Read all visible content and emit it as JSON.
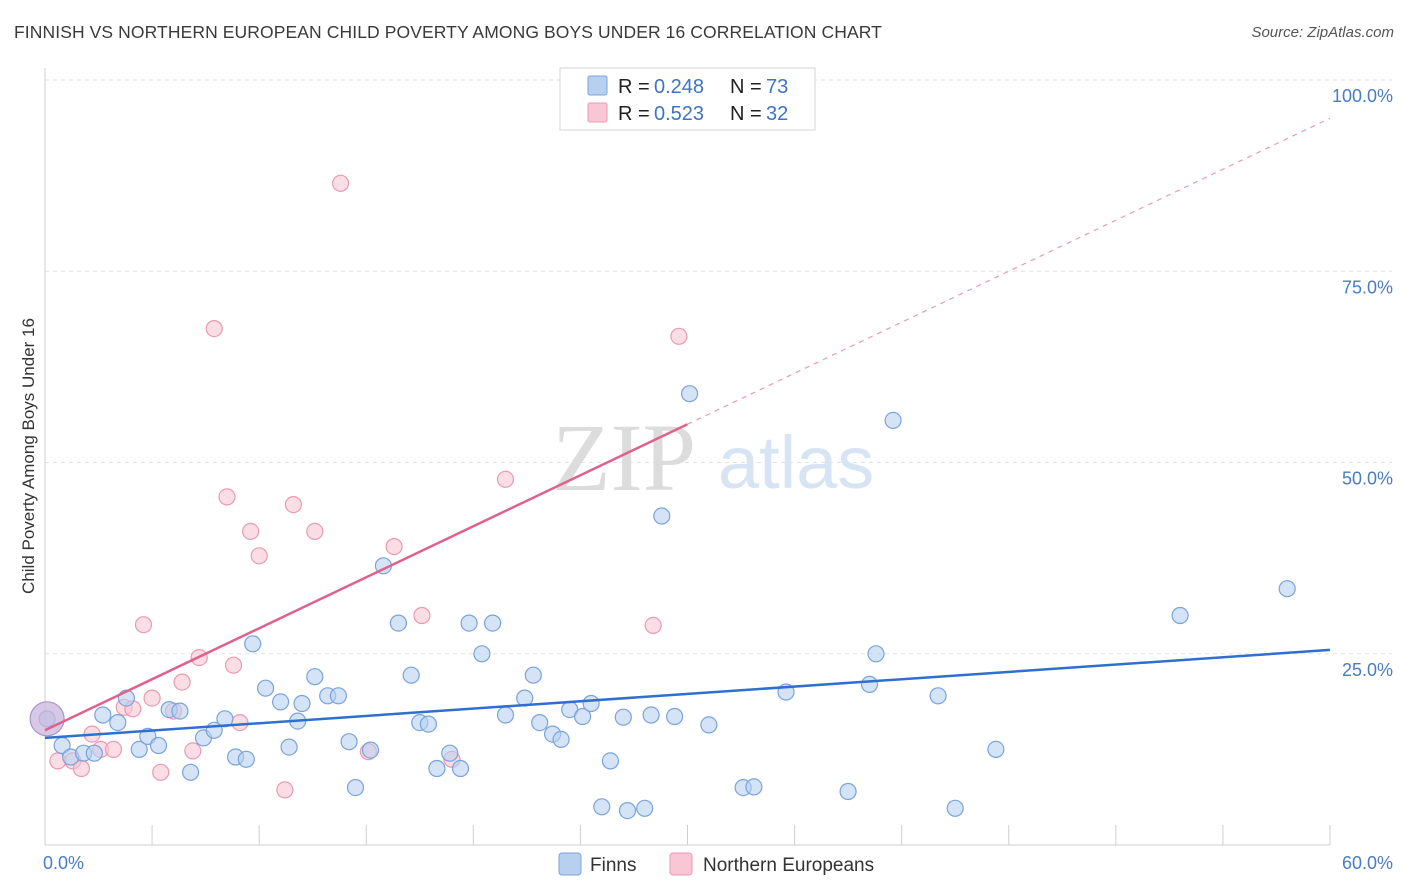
{
  "header": {
    "title": "FINNISH VS NORTHERN EUROPEAN CHILD POVERTY AMONG BOYS UNDER 16 CORRELATION CHART",
    "source": "Source: ZipAtlas.com"
  },
  "watermark": {
    "part1": "ZIP",
    "part2": "atlas"
  },
  "colors": {
    "finns_fill": "#b8d0f0",
    "finns_stroke": "#7aa3dc",
    "finns_line": "#2e6fd0",
    "ne_fill": "#f8c6d4",
    "ne_stroke": "#ea9ab2",
    "ne_line": "#e0628c",
    "grid": "#e2e2e2",
    "tick_text": "#4a7cc4"
  },
  "legend": {
    "items": [
      {
        "r_label": "R =",
        "r_value": "0.248",
        "n_label": "N =",
        "n_value": "73"
      },
      {
        "r_label": "R =",
        "r_value": "0.523",
        "n_label": "N =",
        "n_value": "32"
      }
    ]
  },
  "chart_data": {
    "type": "scatter",
    "title": "FINNISH VS NORTHERN EUROPEAN CHILD POVERTY AMONG BOYS UNDER 16 CORRELATION CHART",
    "xlabel": "",
    "ylabel": "Child Poverty Among Boys Under 16",
    "xlim": [
      0,
      60
    ],
    "ylim": [
      0,
      100
    ],
    "x_ticks": [
      "0.0%",
      "60.0%"
    ],
    "y_ticks": [
      {
        "value": 25,
        "label": "25.0%"
      },
      {
        "value": 50,
        "label": "50.0%"
      },
      {
        "value": 75,
        "label": "75.0%"
      },
      {
        "value": 100,
        "label": "100.0%"
      }
    ],
    "grid": true,
    "legend_position": "top-center",
    "series": [
      {
        "name": "Finns",
        "r": 0.248,
        "n": 73,
        "trend": {
          "x": [
            0,
            60
          ],
          "y": [
            14.0,
            25.5
          ],
          "dashed_extension": false
        },
        "points": [
          [
            0.1,
            16.5
          ],
          [
            0.8,
            13.0
          ],
          [
            1.2,
            11.5
          ],
          [
            1.8,
            12.0
          ],
          [
            2.3,
            12.0
          ],
          [
            2.7,
            17.0
          ],
          [
            3.4,
            16.0
          ],
          [
            3.8,
            19.2
          ],
          [
            4.4,
            12.5
          ],
          [
            4.8,
            14.2
          ],
          [
            5.3,
            13.0
          ],
          [
            5.8,
            17.7
          ],
          [
            6.3,
            17.5
          ],
          [
            6.8,
            9.5
          ],
          [
            7.4,
            14.0
          ],
          [
            7.9,
            15.0
          ],
          [
            8.4,
            16.5
          ],
          [
            8.9,
            11.5
          ],
          [
            9.4,
            11.2
          ],
          [
            9.7,
            26.3
          ],
          [
            10.3,
            20.5
          ],
          [
            11.0,
            18.7
          ],
          [
            11.4,
            12.8
          ],
          [
            11.8,
            16.2
          ],
          [
            12.0,
            18.5
          ],
          [
            12.6,
            22.0
          ],
          [
            13.2,
            19.5
          ],
          [
            13.7,
            19.5
          ],
          [
            14.2,
            13.5
          ],
          [
            14.5,
            7.5
          ],
          [
            15.2,
            12.4
          ],
          [
            15.8,
            36.5
          ],
          [
            16.5,
            29.0
          ],
          [
            17.1,
            22.2
          ],
          [
            17.5,
            16.0
          ],
          [
            17.9,
            15.8
          ],
          [
            18.3,
            10.0
          ],
          [
            18.9,
            12.0
          ],
          [
            19.4,
            10.0
          ],
          [
            19.8,
            29.0
          ],
          [
            20.4,
            25.0
          ],
          [
            20.9,
            29.0
          ],
          [
            21.5,
            17.0
          ],
          [
            22.4,
            19.2
          ],
          [
            22.8,
            22.2
          ],
          [
            23.1,
            16.0
          ],
          [
            23.7,
            14.5
          ],
          [
            24.1,
            13.8
          ],
          [
            24.5,
            17.7
          ],
          [
            25.1,
            16.8
          ],
          [
            25.5,
            18.5
          ],
          [
            26.0,
            5.0
          ],
          [
            26.4,
            11.0
          ],
          [
            27.0,
            16.7
          ],
          [
            27.2,
            4.5
          ],
          [
            28.0,
            4.8
          ],
          [
            28.3,
            17.0
          ],
          [
            28.8,
            43.0
          ],
          [
            29.4,
            16.8
          ],
          [
            30.1,
            59.0
          ],
          [
            31.0,
            15.7
          ],
          [
            32.6,
            7.5
          ],
          [
            33.1,
            7.6
          ],
          [
            34.6,
            20.0
          ],
          [
            37.5,
            7.0
          ],
          [
            38.5,
            21.0
          ],
          [
            38.8,
            25.0
          ],
          [
            39.6,
            55.5
          ],
          [
            41.7,
            19.5
          ],
          [
            42.5,
            4.8
          ],
          [
            44.4,
            12.5
          ],
          [
            53.0,
            30.0
          ],
          [
            58.0,
            33.5
          ]
        ]
      },
      {
        "name": "Northern Europeans",
        "r": 0.523,
        "n": 32,
        "trend": {
          "x": [
            0,
            30
          ],
          "y": [
            15.0,
            55.0
          ],
          "dashed_to": {
            "x": 60,
            "y": 95.0
          }
        },
        "points": [
          [
            0.6,
            11.0
          ],
          [
            1.3,
            11.0
          ],
          [
            1.7,
            10.0
          ],
          [
            2.2,
            14.5
          ],
          [
            2.6,
            12.5
          ],
          [
            3.2,
            12.5
          ],
          [
            3.7,
            18.0
          ],
          [
            4.1,
            17.8
          ],
          [
            4.6,
            28.8
          ],
          [
            5.0,
            19.2
          ],
          [
            5.4,
            9.5
          ],
          [
            6.0,
            17.5
          ],
          [
            6.4,
            21.3
          ],
          [
            6.9,
            12.3
          ],
          [
            7.2,
            24.5
          ],
          [
            7.9,
            67.5
          ],
          [
            8.5,
            45.5
          ],
          [
            8.8,
            23.5
          ],
          [
            9.1,
            16.0
          ],
          [
            9.6,
            41.0
          ],
          [
            10.0,
            37.8
          ],
          [
            11.2,
            7.2
          ],
          [
            11.6,
            44.5
          ],
          [
            12.6,
            41.0
          ],
          [
            13.8,
            86.5
          ],
          [
            15.1,
            12.2
          ],
          [
            16.3,
            39.0
          ],
          [
            17.6,
            30.0
          ],
          [
            19.0,
            11.2
          ],
          [
            21.5,
            47.8
          ],
          [
            28.4,
            28.7
          ],
          [
            29.6,
            66.5
          ]
        ]
      }
    ]
  },
  "bottom_legend": {
    "items": [
      {
        "label": "Finns"
      },
      {
        "label": "Northern Europeans"
      }
    ]
  }
}
